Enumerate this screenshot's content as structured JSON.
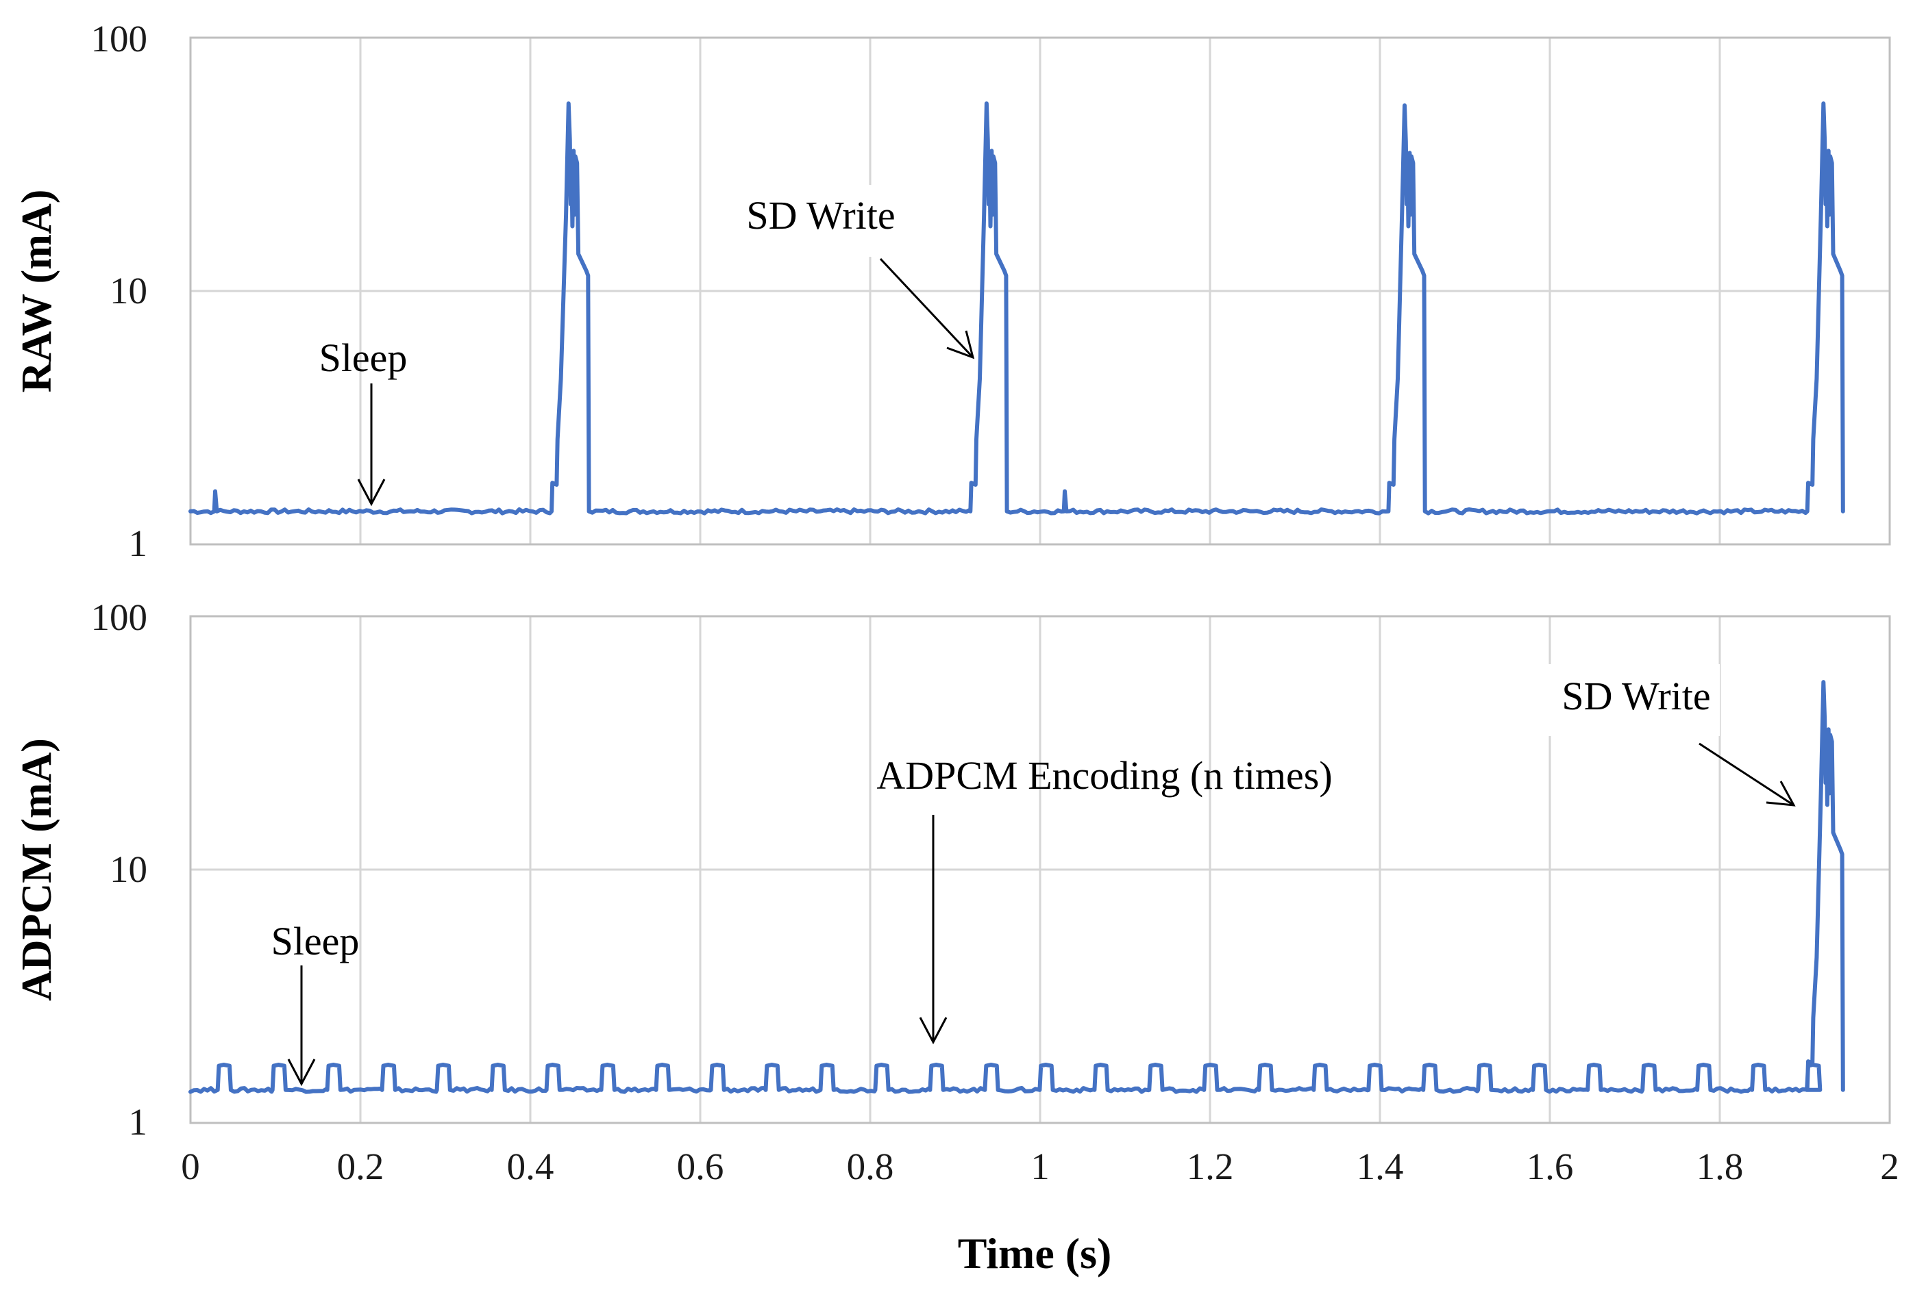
{
  "chart_data": [
    {
      "type": "line",
      "panel": "top",
      "ylabel": "RAW (mA)",
      "xlabel": "",
      "yscale": "log",
      "ylim": [
        1,
        100
      ],
      "xlim": [
        0,
        2
      ],
      "ytick_labels": [
        "100",
        "10",
        "1"
      ],
      "ytick_values": [
        100,
        10,
        1
      ],
      "xticks": [
        0,
        0.2,
        0.4,
        0.6,
        0.8,
        1,
        1.2,
        1.4,
        1.6,
        1.8,
        2
      ],
      "x_tick_labels": [],
      "grid": true,
      "color": "#4472c4",
      "baseline_mA": 1.35,
      "spikes": [
        {
          "pre_start": 0.425,
          "start": 0.432,
          "peak_time": 0.445,
          "peak_mA": 55,
          "end": 0.468
        },
        {
          "pre_start": 0.918,
          "start": 0.925,
          "peak_time": 0.937,
          "peak_mA": 55,
          "end": 0.96
        },
        {
          "pre_start": 1.41,
          "start": 1.417,
          "peak_time": 1.429,
          "peak_mA": 54,
          "end": 1.452
        },
        {
          "pre_start": 1.903,
          "start": 1.91,
          "peak_time": 1.922,
          "peak_mA": 55,
          "end": 1.944
        }
      ],
      "small_blips": [
        0.028,
        1.028
      ],
      "end_time": 1.944,
      "annotations": [
        {
          "text": "Sleep",
          "x": 0.21,
          "y": 1.35
        },
        {
          "text": "SD Write",
          "x": 0.925,
          "y": 5.2
        }
      ]
    },
    {
      "type": "line",
      "panel": "bottom",
      "ylabel": "ADPCM (mA)",
      "xlabel": "Time (s)",
      "yscale": "log",
      "ylim": [
        1,
        100
      ],
      "xlim": [
        0,
        2
      ],
      "ytick_labels": [
        "100",
        "10",
        "1"
      ],
      "ytick_values": [
        100,
        10,
        1
      ],
      "xticks": [
        0,
        0.2,
        0.4,
        0.6,
        0.8,
        1,
        1.2,
        1.4,
        1.6,
        1.8,
        2
      ],
      "x_tick_labels": [
        "0",
        "0.2",
        "0.4",
        "0.6",
        "0.8",
        "1",
        "1.2",
        "1.4",
        "1.6",
        "1.8",
        "2"
      ],
      "grid": true,
      "color": "#4472c4",
      "baseline_mA": 1.35,
      "encoding_pulses": {
        "first": 0.032,
        "period": 0.0645,
        "count": 30,
        "width": 0.014,
        "level_mA": 1.68
      },
      "spikes": [
        {
          "pre_start": 1.903,
          "start": 1.91,
          "peak_time": 1.922,
          "peak_mA": 55,
          "end": 1.944
        }
      ],
      "end_time": 1.944,
      "annotations": [
        {
          "text": "Sleep",
          "x": 0.13,
          "y": 1.35
        },
        {
          "text": "ADPCM Encoding (n times)",
          "x": 0.875,
          "y": 1.72
        },
        {
          "text": "SD Write",
          "x": 1.9,
          "y": 18
        }
      ]
    }
  ]
}
